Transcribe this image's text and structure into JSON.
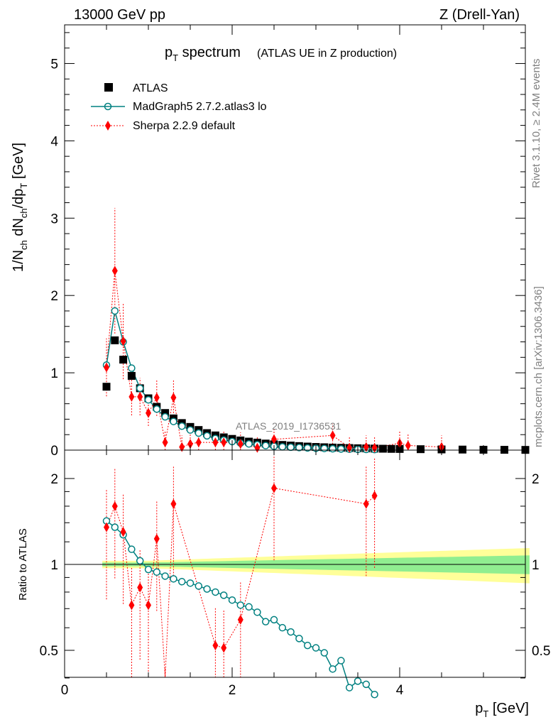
{
  "header": {
    "energy": "13000 GeV pp",
    "process": "Z (Drell-Yan)"
  },
  "side": {
    "rivet": "Rivet 3.1.10, ≥ 2.4M events",
    "source": "mcplots.cern.ch [arXiv:1306.3436]"
  },
  "watermark": "ATLAS_2019_I1736531",
  "chart_data": [
    {
      "type": "scatter",
      "title": "p_T spectrum",
      "subtitle": "(ATLAS UE in Z production)",
      "xlabel": "p_T [GeV]",
      "ylabel": "1/N_ch dN_ch/dp_T [GeV]",
      "xlim": [
        0,
        5.5
      ],
      "ylim": [
        0,
        5.5
      ],
      "xticks": [
        "0",
        "2",
        "4"
      ],
      "yticks": [
        "0",
        "1",
        "2",
        "3",
        "4",
        "5"
      ],
      "legend": [
        "ATLAS",
        "MadGraph5 2.7.2.atlas3 lo",
        "Sherpa 2.2.9 default"
      ],
      "series": [
        {
          "name": "ATLAS",
          "x": [
            0.5,
            0.6,
            0.7,
            0.8,
            0.9,
            1.0,
            1.1,
            1.2,
            1.3,
            1.4,
            1.5,
            1.6,
            1.7,
            1.8,
            1.9,
            2.0,
            2.1,
            2.2,
            2.3,
            2.4,
            2.5,
            2.6,
            2.7,
            2.8,
            2.9,
            3.0,
            3.1,
            3.2,
            3.3,
            3.4,
            3.5,
            3.6,
            3.7,
            3.8,
            3.9,
            4.0,
            4.25,
            4.5,
            4.75,
            5.0,
            5.25,
            5.5
          ],
          "values": [
            0.82,
            1.42,
            1.17,
            0.96,
            0.8,
            0.67,
            0.56,
            0.48,
            0.41,
            0.35,
            0.3,
            0.26,
            0.22,
            0.19,
            0.165,
            0.145,
            0.125,
            0.11,
            0.097,
            0.085,
            0.075,
            0.067,
            0.059,
            0.052,
            0.046,
            0.041,
            0.037,
            0.033,
            0.03,
            0.027,
            0.024,
            0.022,
            0.02,
            0.018,
            0.016,
            0.015,
            0.012,
            0.009,
            0.007,
            0.005,
            0.004,
            0.003
          ]
        },
        {
          "name": "MadGraph5 2.7.2.atlas3 lo",
          "x": [
            0.5,
            0.6,
            0.7,
            0.8,
            0.9,
            1.0,
            1.1,
            1.2,
            1.3,
            1.4,
            1.5,
            1.6,
            1.7,
            1.8,
            1.9,
            2.0,
            2.1,
            2.2,
            2.3,
            2.4,
            2.5,
            2.6,
            2.7,
            2.8,
            2.9,
            3.0,
            3.1,
            3.2,
            3.3,
            3.4,
            3.5,
            3.6,
            3.7
          ],
          "values": [
            1.1,
            1.8,
            1.4,
            1.06,
            0.8,
            0.65,
            0.53,
            0.43,
            0.37,
            0.31,
            0.26,
            0.22,
            0.185,
            0.15,
            0.13,
            0.11,
            0.09,
            0.08,
            0.07,
            0.058,
            0.049,
            0.043,
            0.038,
            0.033,
            0.028,
            0.024,
            0.021,
            0.017,
            0.015,
            0.011,
            0.01,
            0.009,
            0.007
          ]
        },
        {
          "name": "Sherpa 2.2.9 default",
          "x": [
            0.5,
            0.6,
            0.7,
            0.8,
            0.9,
            1.0,
            1.1,
            1.2,
            1.3,
            1.4,
            1.5,
            1.6,
            1.8,
            1.9,
            2.1,
            2.3,
            2.5,
            3.2,
            3.4,
            3.6,
            3.7,
            4.0,
            4.1,
            4.5
          ],
          "values": [
            1.07,
            2.32,
            1.41,
            0.69,
            0.69,
            0.48,
            0.68,
            0.1,
            0.68,
            0.04,
            0.08,
            0.1,
            0.1,
            0.1,
            0.08,
            0.03,
            0.14,
            0.19,
            0.03,
            0.04,
            0.03,
            0.09,
            0.06,
            0.04
          ]
        }
      ]
    },
    {
      "type": "scatter",
      "ylabel": "Ratio to ATLAS",
      "xlabel": "p_T [GeV]",
      "xlim": [
        0,
        5.5
      ],
      "ylim": [
        0.34,
        2.25
      ],
      "yticks": [
        "0.5",
        "1",
        "2"
      ],
      "series": [
        {
          "name": "MadGraph5 2.7.2.atlas3 lo",
          "x": [
            0.5,
            0.6,
            0.7,
            0.8,
            0.9,
            1.0,
            1.1,
            1.2,
            1.3,
            1.4,
            1.5,
            1.6,
            1.7,
            1.8,
            1.9,
            2.0,
            2.1,
            2.2,
            2.3,
            2.4,
            2.5,
            2.6,
            2.7,
            2.8,
            2.9,
            3.0,
            3.1,
            3.2,
            3.3,
            3.4,
            3.5,
            3.6,
            3.7
          ],
          "values": [
            1.42,
            1.35,
            1.27,
            1.13,
            1.03,
            0.96,
            0.94,
            0.91,
            0.89,
            0.87,
            0.86,
            0.84,
            0.82,
            0.8,
            0.78,
            0.75,
            0.72,
            0.71,
            0.68,
            0.63,
            0.64,
            0.6,
            0.58,
            0.55,
            0.52,
            0.51,
            0.49,
            0.43,
            0.46,
            0.37,
            0.39,
            0.38,
            0.35
          ]
        },
        {
          "name": "Sherpa 2.2.9 default",
          "x": [
            0.5,
            0.6,
            0.7,
            0.8,
            0.9,
            1.0,
            1.1,
            1.2,
            1.3,
            1.8,
            1.9,
            2.1,
            2.5,
            3.6,
            3.7
          ],
          "values": [
            1.35,
            1.6,
            1.3,
            0.72,
            0.83,
            0.72,
            1.23,
            0.32,
            1.63,
            0.52,
            0.51,
            0.64,
            1.85,
            1.63,
            1.74
          ]
        }
      ],
      "bands": [
        {
          "name": "stat",
          "color": "#90ee90"
        },
        {
          "name": "total",
          "color": "#ffff99"
        }
      ]
    }
  ],
  "colors": {
    "atlas": "#000000",
    "madgraph": "#008080",
    "sherpa": "#ff0000",
    "band_inner": "#90ee90",
    "band_outer": "#ffff99"
  }
}
